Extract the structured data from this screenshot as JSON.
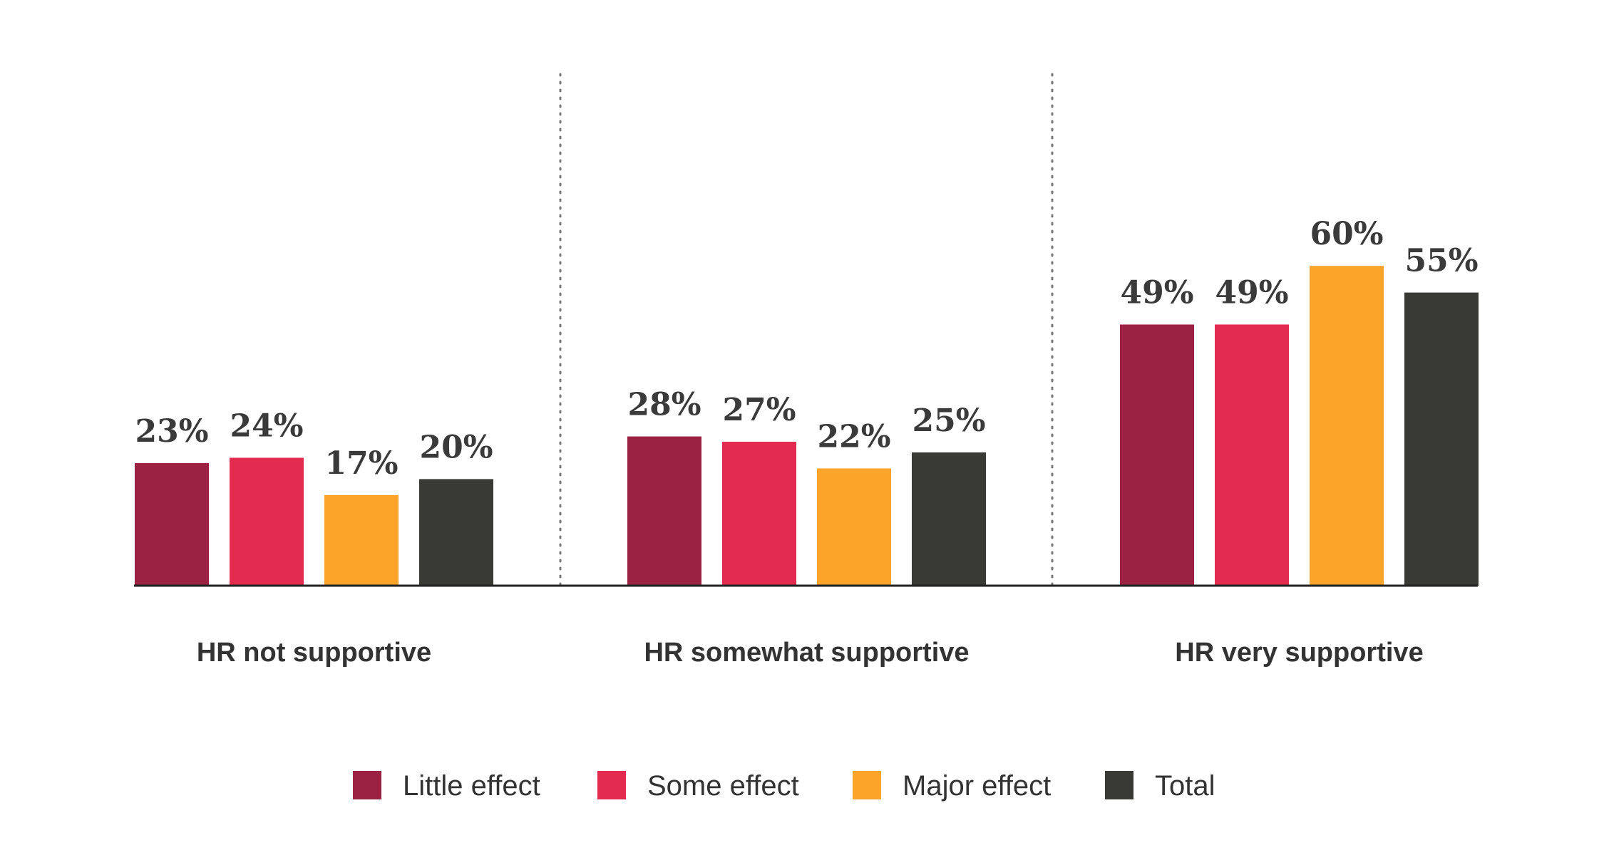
{
  "chart_data": {
    "type": "bar",
    "categories": [
      "HR not supportive",
      "HR somewhat supportive",
      "HR very supportive"
    ],
    "series": [
      {
        "name": "Little effect",
        "color": "#9b2242",
        "values": [
          23,
          28,
          49
        ]
      },
      {
        "name": "Some effect",
        "color": "#e32b50",
        "values": [
          24,
          27,
          49
        ]
      },
      {
        "name": "Major effect",
        "color": "#fca42a",
        "values": [
          17,
          22,
          60
        ]
      },
      {
        "name": "Total",
        "color": "#393936",
        "values": [
          20,
          25,
          55
        ]
      }
    ],
    "value_suffix": "%",
    "ylim": [
      0,
      70
    ],
    "grid": false,
    "legend_position": "bottom",
    "group_separators": "dotted"
  }
}
